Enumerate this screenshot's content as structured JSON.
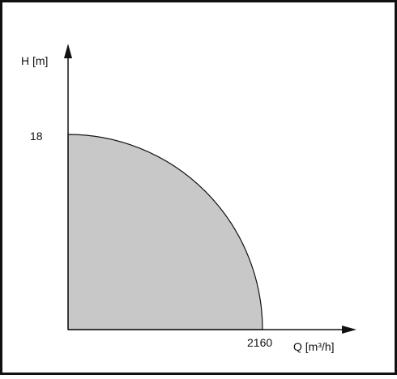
{
  "chart_data": {
    "type": "area",
    "curve": "elliptical quarter arc from shut-off head to maximum flow",
    "points": [
      {
        "x": 0,
        "y": 18
      },
      {
        "x": 2160,
        "y": 0
      }
    ],
    "x_tick_labels": [
      "2160"
    ],
    "y_tick_labels": [
      "18"
    ],
    "xlabel": "Q [m³/h]",
    "ylabel": "H [m]",
    "grid": false,
    "legend": "none"
  },
  "colors": {
    "fill": "#c8c8c8",
    "stroke": "#111111",
    "frame": "#111111"
  }
}
